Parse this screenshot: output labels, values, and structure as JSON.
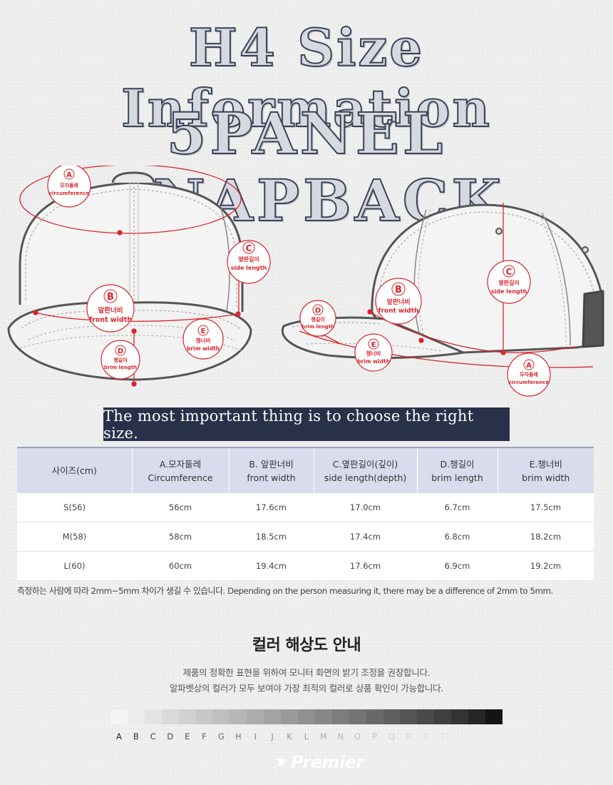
{
  "header": {
    "line1": "H4 Size Information",
    "line2": "5PANEL SNAPBACK"
  },
  "callouts": {
    "a": {
      "letter": "A",
      "ko": "모자둘레",
      "en": "circumference"
    },
    "b": {
      "letter": "B",
      "ko": "앞판너비",
      "en": "front width"
    },
    "c": {
      "letter": "C",
      "ko": "옆판길이",
      "en": "side length"
    },
    "d": {
      "letter": "D",
      "ko": "챙길이",
      "en": "brim length"
    },
    "e": {
      "letter": "E",
      "ko": "챙너비",
      "en": "brim width"
    }
  },
  "banner": "The most important thing is to choose the right size.",
  "table": {
    "headers": [
      {
        "ko": "사이즈(cm)",
        "en": ""
      },
      {
        "ko": "A.모자둘레",
        "en": "Circumference"
      },
      {
        "ko": "B. 앞판너비",
        "en": "front width"
      },
      {
        "ko": "C.옆판길이(깊이)",
        "en": "side length(depth)"
      },
      {
        "ko": "D.챙길이",
        "en": "brim length"
      },
      {
        "ko": "E.챙너비",
        "en": "brim width"
      }
    ],
    "rows": [
      [
        "S(56)",
        "56cm",
        "17.6cm",
        "17.0cm",
        "6.7cm",
        "17.5cm"
      ],
      [
        "M(58)",
        "58cm",
        "18.5cm",
        "17.4cm",
        "6.8cm",
        "18.2cm"
      ],
      [
        "L(60)",
        "60cm",
        "19.4cm",
        "17.6cm",
        "6.9cm",
        "19.2cm"
      ]
    ]
  },
  "note": "측정하는 사람에 따라  2mm~5mm 차이가 생길 수 있습니다. Depending on the person measuring it, there may be a difference of 2mm to 5mm.",
  "color_guide": {
    "title": "컬러 해상도 안내",
    "line1": "제품의 정확한 표현을 위하여 모니터 화면의 밝기 조정을 권장합니다.",
    "line2": "알파벳상의 컬러가 모두 보여야 가장 최적의 컬러로 상품 확인이 가능합니다.",
    "letters": [
      "A",
      "B",
      "C",
      "D",
      "E",
      "F",
      "G",
      "H",
      "I",
      "J",
      "K",
      "L",
      "M",
      "N",
      "O",
      "P",
      "Q",
      "R",
      "S",
      "T",
      "U",
      "V",
      "W"
    ],
    "swatches": [
      "#f4f4f4",
      "#ececec",
      "#e3e3e3",
      "#dadada",
      "#d1d1d1",
      "#c8c8c8",
      "#bfbfbf",
      "#b6b6b6",
      "#adadad",
      "#a3a3a3",
      "#9a9a9a",
      "#909090",
      "#878787",
      "#7d7d7d",
      "#737373",
      "#696969",
      "#5f5f5f",
      "#555555",
      "#4a4a4a",
      "#3f3f3f",
      "#333333",
      "#262626",
      "#141414"
    ],
    "letter_colors": [
      "#222222",
      "#2e2e2e",
      "#3a3a3a",
      "#464646",
      "#525252",
      "#5e5e5e",
      "#6a6a6a",
      "#767676",
      "#828282",
      "#8c8c8c",
      "#969696",
      "#a0a0a0",
      "#aaaaaa",
      "#b3b3b3",
      "#bcbcbc",
      "#c4c4c4",
      "#cccccc",
      "#d3d3d3",
      "#d9d9d9",
      "#dfdfdf",
      "#e4e4e4",
      "#e8e8e8",
      "#ebebeb"
    ]
  },
  "brand": {
    "name": "Premier",
    "mark_icon": "premier-mark-icon"
  },
  "colors": {
    "accent_red": "#d9262c",
    "banner_navy": "#283149",
    "table_header": "#d9dcec"
  }
}
